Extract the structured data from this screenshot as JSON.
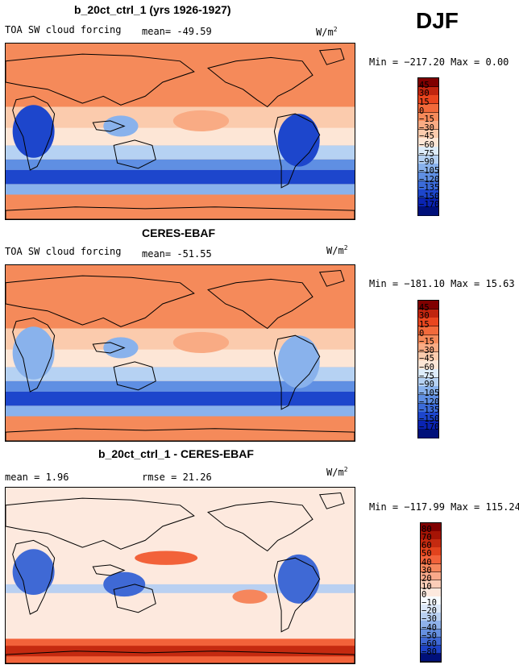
{
  "season": "DJF",
  "chart_data": [
    {
      "type": "heatmap",
      "title": "b_20ct_ctrl_1 (yrs 1926-1927)",
      "subtitle_left": "TOA SW cloud forcing",
      "mean_text": "mean= -49.59",
      "units_base": "W/m",
      "units_exp": "2",
      "minmax_text": "Min = −217.20 Max =    0.00",
      "min": -217.2,
      "max": 0.0,
      "mean": -49.59,
      "colorbar_levels": [
        "45",
        "30",
        "15",
        "0",
        "−15",
        "−30",
        "−45",
        "−60",
        "−75",
        "−90",
        "−105",
        "−120",
        "−135",
        "−150",
        "−170"
      ],
      "colorbar_colors": [
        "#800000",
        "#c0250f",
        "#e9461f",
        "#f26a3b",
        "#f58a5a",
        "#f9ab84",
        "#fbcbad",
        "#fde6d6",
        "#ddecfa",
        "#b6d2f3",
        "#89b2ec",
        "#5f8fe3",
        "#3b6bd9",
        "#1d46cc",
        "#0a24b3",
        "#00107a"
      ],
      "map_style": "ctrl"
    },
    {
      "type": "heatmap",
      "title": "CERES-EBAF",
      "subtitle_left": "TOA SW cloud forcing",
      "mean_text": "mean= -51.55",
      "units_base": "W/m",
      "units_exp": "2",
      "minmax_text": "Min = −181.10 Max =  15.63",
      "min": -181.1,
      "max": 15.63,
      "mean": -51.55,
      "colorbar_levels": [
        "45",
        "30",
        "15",
        "0",
        "−15",
        "−30",
        "−45",
        "−60",
        "−75",
        "−90",
        "−105",
        "−120",
        "−135",
        "−150",
        "−170"
      ],
      "colorbar_colors": [
        "#800000",
        "#c0250f",
        "#e9461f",
        "#f26a3b",
        "#f58a5a",
        "#f9ab84",
        "#fbcbad",
        "#fde6d6",
        "#ddecfa",
        "#b6d2f3",
        "#89b2ec",
        "#5f8fe3",
        "#3b6bd9",
        "#1d46cc",
        "#0a24b3",
        "#00107a"
      ],
      "map_style": "obs"
    },
    {
      "type": "heatmap",
      "title": "b_20ct_ctrl_1 - CERES-EBAF",
      "subtitle_left": "mean =    1.96",
      "mean_text": "rmse =  21.26",
      "units_base": "W/m",
      "units_exp": "2",
      "minmax_text": "Min = −117.99 Max = 115.24",
      "min": -117.99,
      "max": 115.24,
      "mean": 1.96,
      "rmse": 21.26,
      "colorbar_levels": [
        "80",
        "70",
        "60",
        "50",
        "40",
        "30",
        "20",
        "10",
        "0",
        "−10",
        "−20",
        "−30",
        "−40",
        "−50",
        "−60",
        "−80"
      ],
      "colorbar_colors": [
        "#800000",
        "#a51405",
        "#c42a10",
        "#e2431d",
        "#f2623a",
        "#f6865c",
        "#f9a98a",
        "#fbcdb8",
        "#fde9de",
        "#f7fbff",
        "#dce8f8",
        "#b9d0f1",
        "#8fb2ea",
        "#6690e0",
        "#3f69d5",
        "#1e43c6",
        "#00107a"
      ],
      "map_style": "diff"
    }
  ]
}
